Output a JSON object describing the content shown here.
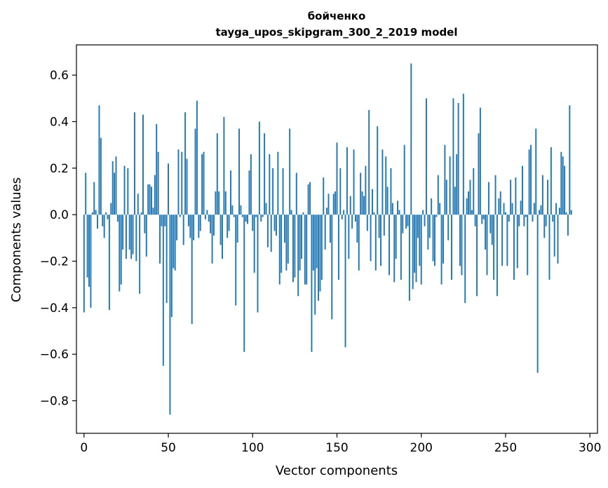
{
  "chart_data": {
    "type": "bar",
    "title": "бойченко",
    "subtitle": "tayga_upos_skipgram_300_2_2019 model",
    "xlabel": "Vector components",
    "ylabel": "Components values",
    "xlim": [
      -4.5,
      304.5
    ],
    "ylim": [
      -0.94,
      0.73
    ],
    "xticks": [
      0,
      50,
      100,
      150,
      200,
      250,
      300
    ],
    "yticks": [
      -0.8,
      -0.6,
      -0.4,
      -0.2,
      0.0,
      0.2,
      0.4,
      0.6
    ],
    "xtick_labels": [
      "0",
      "50",
      "100",
      "150",
      "200",
      "250",
      "300"
    ],
    "ytick_labels": [
      "−0.8",
      "−0.6",
      "−0.4",
      "−0.2",
      "0.0",
      "0.2",
      "0.4",
      "0.6"
    ],
    "bar_color": "#1f77b4",
    "grid": false,
    "legend": "none",
    "series": [
      {
        "values": [
          -0.42,
          0.18,
          -0.27,
          -0.31,
          -0.4,
          0.01,
          0.14,
          0.02,
          -0.06,
          0.47,
          0.33,
          -0.05,
          -0.1,
          0.01,
          -0.02,
          -0.41,
          0.05,
          0.23,
          0.18,
          0.25,
          -0.03,
          -0.33,
          -0.3,
          -0.15,
          0.21,
          -0.19,
          0.2,
          -0.15,
          -0.19,
          -0.17,
          0.44,
          -0.2,
          0.09,
          -0.34,
          0.01,
          0.43,
          -0.08,
          -0.18,
          0.13,
          0.13,
          0.12,
          0.03,
          0.17,
          0.39,
          0.27,
          -0.21,
          -0.05,
          -0.65,
          -0.05,
          -0.38,
          0.22,
          -0.86,
          -0.44,
          -0.23,
          -0.24,
          -0.11,
          0.28,
          -0.01,
          0.27,
          -0.13,
          0.44,
          0.24,
          -0.05,
          -0.1,
          -0.47,
          -0.11,
          0.37,
          0.49,
          -0.1,
          -0.07,
          0.26,
          0.27,
          -0.02,
          0.02,
          -0.03,
          -0.08,
          -0.21,
          -0.09,
          0.1,
          0.35,
          0.1,
          -0.13,
          -0.19,
          0.42,
          0.1,
          -0.1,
          -0.07,
          0.19,
          0.04,
          -0.01,
          -0.39,
          -0.12,
          0.37,
          0.04,
          -0.01,
          -0.59,
          -0.03,
          -0.04,
          0.19,
          0.26,
          -0.07,
          -0.25,
          -0.01,
          -0.42,
          0.4,
          -0.03,
          -0.01,
          0.35,
          0.05,
          -0.14,
          0.26,
          -0.16,
          0.2,
          -0.07,
          -0.09,
          0.27,
          -0.3,
          -0.25,
          0.2,
          -0.12,
          -0.24,
          -0.21,
          0.37,
          0.02,
          -0.29,
          -0.27,
          0.18,
          -0.35,
          -0.24,
          -0.19,
          0.01,
          -0.3,
          -0.3,
          0.13,
          0.14,
          -0.59,
          -0.24,
          -0.43,
          -0.23,
          -0.37,
          -0.33,
          -0.28,
          0.16,
          -0.15,
          0.03,
          0.09,
          -0.12,
          -0.45,
          0.09,
          0.1,
          0.31,
          -0.28,
          0.2,
          -0.02,
          0.02,
          -0.57,
          0.29,
          -0.19,
          0.08,
          -0.06,
          0.28,
          -0.03,
          -0.12,
          -0.24,
          0.18,
          0.1,
          0.08,
          0.21,
          -0.07,
          0.45,
          -0.2,
          0.11,
          0.01,
          -0.24,
          0.38,
          -0.1,
          -0.22,
          0.28,
          -0.09,
          0.25,
          0.12,
          -0.26,
          0.2,
          0.05,
          -0.29,
          -0.19,
          0.06,
          0.02,
          -0.28,
          -0.08,
          0.3,
          -0.06,
          -0.05,
          -0.37,
          0.65,
          -0.32,
          -0.25,
          -0.29,
          -0.1,
          -0.22,
          -0.3,
          0.02,
          -0.05,
          0.5,
          -0.15,
          -0.1,
          0.07,
          -0.2,
          -0.22,
          -0.01,
          0.17,
          0.05,
          -0.3,
          -0.21,
          0.3,
          0.15,
          -0.11,
          0.25,
          -0.28,
          0.5,
          0.12,
          0.26,
          0.48,
          -0.22,
          -0.26,
          0.52,
          -0.38,
          0.07,
          0.1,
          0.15,
          0.02,
          0.2,
          -0.05,
          -0.35,
          0.35,
          0.46,
          -0.04,
          -0.02,
          -0.15,
          -0.26,
          0.14,
          -0.08,
          -0.13,
          -0.28,
          0.17,
          -0.35,
          0.07,
          0.1,
          -0.22,
          0.05,
          0.01,
          -0.22,
          -0.03,
          0.15,
          0.05,
          -0.28,
          0.16,
          -0.23,
          -0.05,
          0.06,
          0.21,
          -0.05,
          -0.01,
          -0.26,
          0.28,
          0.3,
          -0.03,
          0.05,
          0.37,
          -0.68,
          0.02,
          0.04,
          0.17,
          -0.1,
          -0.05,
          0.15,
          -0.28,
          0.29,
          -0.03,
          -0.18,
          0.05,
          -0.21,
          0.03,
          0.27,
          0.25,
          0.21,
          0.01,
          -0.09,
          0.47,
          0.02
        ]
      }
    ]
  }
}
